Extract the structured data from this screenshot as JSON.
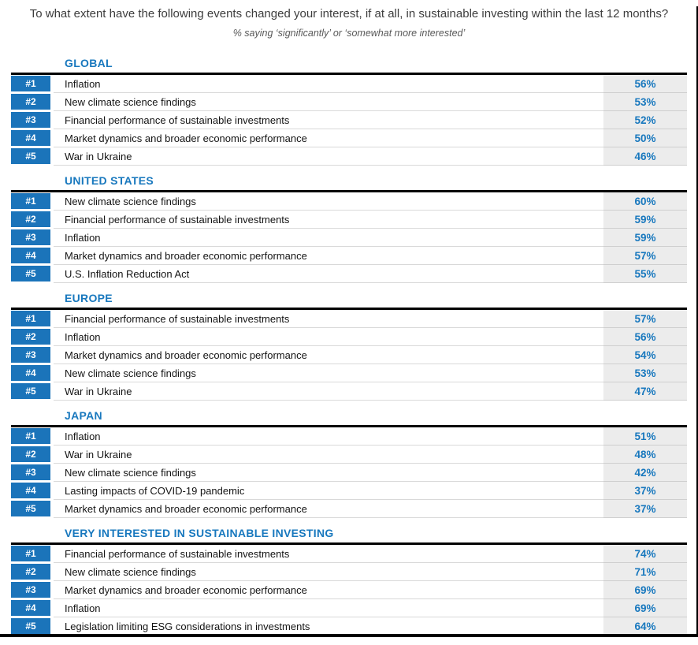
{
  "title": "To what extent have the following events changed your interest, if at all, in sustainable investing within the last 12 months?",
  "subtitle": "% saying ‘significantly’ or ‘somewhat more interested’",
  "colors": {
    "accent_blue": "#1b74ba",
    "header_blue": "#1878be",
    "percent_blue": "#1878be",
    "percent_column_bg": "#ececec",
    "rule_black": "#000000"
  },
  "chart_data": {
    "type": "table",
    "title": "To what extent have the following events changed your interest, if at all, in sustainable investing within the last 12 months?",
    "subtitle": "% saying ‘significantly’ or ‘somewhat more interested’",
    "value_format": "percent",
    "columns": [
      "rank",
      "event",
      "percent"
    ],
    "groups": [
      {
        "name": "GLOBAL",
        "rows": [
          {
            "rank": "#1",
            "event": "Inflation",
            "value": 56,
            "value_label": "56%"
          },
          {
            "rank": "#2",
            "event": "New climate science findings",
            "value": 53,
            "value_label": "53%"
          },
          {
            "rank": "#3",
            "event": "Financial performance of sustainable investments",
            "value": 52,
            "value_label": "52%"
          },
          {
            "rank": "#4",
            "event": "Market dynamics and broader economic performance",
            "value": 50,
            "value_label": "50%"
          },
          {
            "rank": "#5",
            "event": "War in Ukraine",
            "value": 46,
            "value_label": "46%"
          }
        ]
      },
      {
        "name": "UNITED STATES",
        "rows": [
          {
            "rank": "#1",
            "event": "New climate science findings",
            "value": 60,
            "value_label": "60%"
          },
          {
            "rank": "#2",
            "event": "Financial performance of sustainable investments",
            "value": 59,
            "value_label": "59%"
          },
          {
            "rank": "#3",
            "event": "Inflation",
            "value": 59,
            "value_label": "59%"
          },
          {
            "rank": "#4",
            "event": "Market dynamics and broader economic performance",
            "value": 57,
            "value_label": "57%"
          },
          {
            "rank": "#5",
            "event": "U.S. Inflation Reduction Act",
            "value": 55,
            "value_label": "55%"
          }
        ]
      },
      {
        "name": "EUROPE",
        "rows": [
          {
            "rank": "#1",
            "event": "Financial performance of sustainable investments",
            "value": 57,
            "value_label": "57%"
          },
          {
            "rank": "#2",
            "event": "Inflation",
            "value": 56,
            "value_label": "56%"
          },
          {
            "rank": "#3",
            "event": "Market dynamics and broader economic performance",
            "value": 54,
            "value_label": "54%"
          },
          {
            "rank": "#4",
            "event": "New climate science findings",
            "value": 53,
            "value_label": "53%"
          },
          {
            "rank": "#5",
            "event": "War in Ukraine",
            "value": 47,
            "value_label": "47%"
          }
        ]
      },
      {
        "name": "JAPAN",
        "rows": [
          {
            "rank": "#1",
            "event": "Inflation",
            "value": 51,
            "value_label": "51%"
          },
          {
            "rank": "#2",
            "event": "War in Ukraine",
            "value": 48,
            "value_label": "48%"
          },
          {
            "rank": "#3",
            "event": "New climate science findings",
            "value": 42,
            "value_label": "42%"
          },
          {
            "rank": "#4",
            "event": "Lasting impacts of COVID-19 pandemic",
            "value": 37,
            "value_label": "37%"
          },
          {
            "rank": "#5",
            "event": "Market dynamics and broader economic performance",
            "value": 37,
            "value_label": "37%"
          }
        ]
      },
      {
        "name": "VERY INTERESTED IN SUSTAINABLE INVESTING",
        "rows": [
          {
            "rank": "#1",
            "event": "Financial performance of sustainable investments",
            "value": 74,
            "value_label": "74%"
          },
          {
            "rank": "#2",
            "event": "New climate science findings",
            "value": 71,
            "value_label": "71%"
          },
          {
            "rank": "#3",
            "event": "Market dynamics and broader economic performance",
            "value": 69,
            "value_label": "69%"
          },
          {
            "rank": "#4",
            "event": "Inflation",
            "value": 69,
            "value_label": "69%"
          },
          {
            "rank": "#5",
            "event": "Legislation limiting ESG considerations in investments",
            "value": 64,
            "value_label": "64%"
          }
        ]
      }
    ]
  }
}
